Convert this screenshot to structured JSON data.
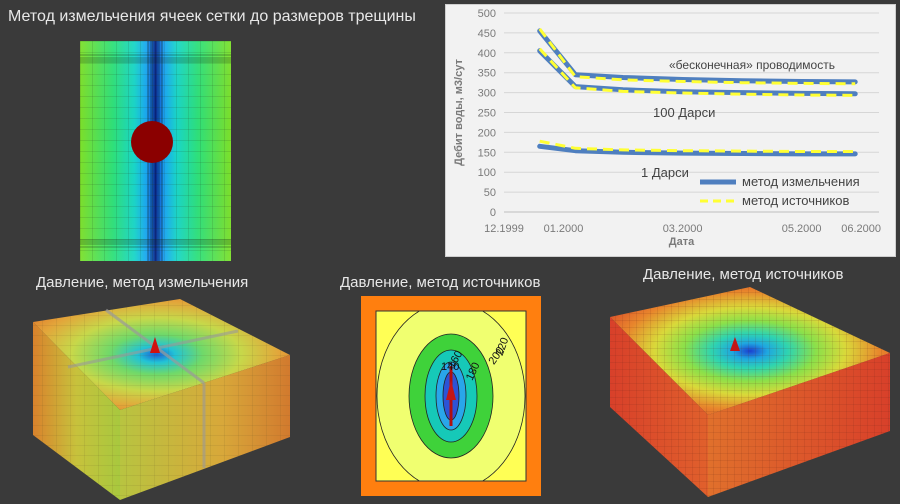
{
  "captions": {
    "grid_title": "Метод измельчения ячеек сетки до размеров трещины",
    "pressure_refine": "Давление, метод измельчения",
    "pressure_source_2d": "Давление, метод источников",
    "pressure_source_3d": "Давление, метод источников"
  },
  "contour_labels": [
    "140",
    "160",
    "180",
    "200",
    "220"
  ],
  "chart_data": {
    "type": "line",
    "xlabel": "Дата",
    "ylabel": "Дебит воды, м3/сут",
    "ylim": [
      0,
      500
    ],
    "yticks": [
      0,
      50,
      100,
      150,
      200,
      250,
      300,
      350,
      400,
      450,
      500
    ],
    "xtick_labels": [
      "12.1999",
      "01.2000",
      "03.2000",
      "05.2000",
      "06.2000"
    ],
    "x_tick_months": [
      0,
      1,
      3,
      5,
      6
    ],
    "grid": "horizontal",
    "legend_position": "bottom-right",
    "legend": [
      "метод измельчения",
      "метод источников"
    ],
    "colors": {
      "refine": "#4f7fbf",
      "source": "#ffff33"
    },
    "annotations": [
      "«бесконечная» проводимость",
      "100 Дарси",
      "1 Дарси"
    ],
    "x_months": [
      0.6,
      1.2,
      2.0,
      3.0,
      4.0,
      5.0,
      5.9
    ],
    "series": [
      {
        "group": "«бесконечная» проводимость",
        "method": "метод измельчения",
        "values": [
          455,
          345,
          338,
          333,
          330,
          328,
          327
        ]
      },
      {
        "group": "«бесконечная» проводимость",
        "method": "метод источников",
        "values": [
          460,
          340,
          332,
          328,
          325,
          323,
          322
        ]
      },
      {
        "group": "100 Дарси",
        "method": "метод измельчения",
        "values": [
          405,
          315,
          307,
          302,
          300,
          298,
          297
        ]
      },
      {
        "group": "100 Дарси",
        "method": "метод источников",
        "values": [
          410,
          312,
          303,
          299,
          296,
          294,
          293
        ]
      },
      {
        "group": "1 Дарси",
        "method": "метод измельчения",
        "values": [
          165,
          154,
          150,
          148,
          147,
          146,
          146
        ]
      },
      {
        "group": "1 Дарси",
        "method": "метод источников",
        "values": [
          178,
          160,
          156,
          154,
          153,
          152,
          152
        ]
      }
    ]
  }
}
